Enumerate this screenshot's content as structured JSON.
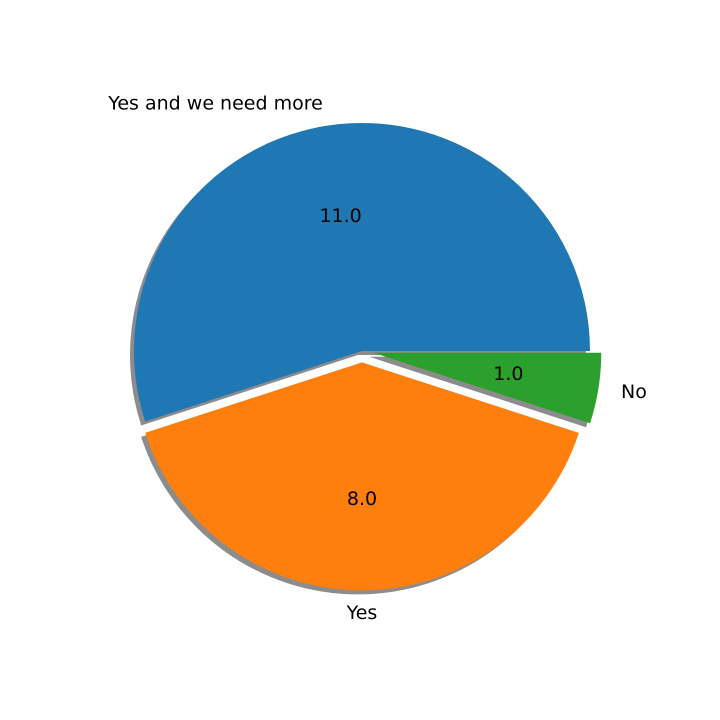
{
  "chart_data": {
    "type": "pie",
    "categories": [
      "Yes and we need more",
      "Yes",
      "No"
    ],
    "values": [
      11.0,
      8.0,
      1.0
    ],
    "value_labels": [
      "11.0",
      "8.0",
      "1.0"
    ],
    "colors": [
      "#1f77b4",
      "#ff7f0e",
      "#2ca02c"
    ],
    "explode": [
      0,
      0.05,
      0.05
    ],
    "shadow": true,
    "start_angle_deg": 0,
    "direction": "counterclockwise",
    "title": ""
  }
}
